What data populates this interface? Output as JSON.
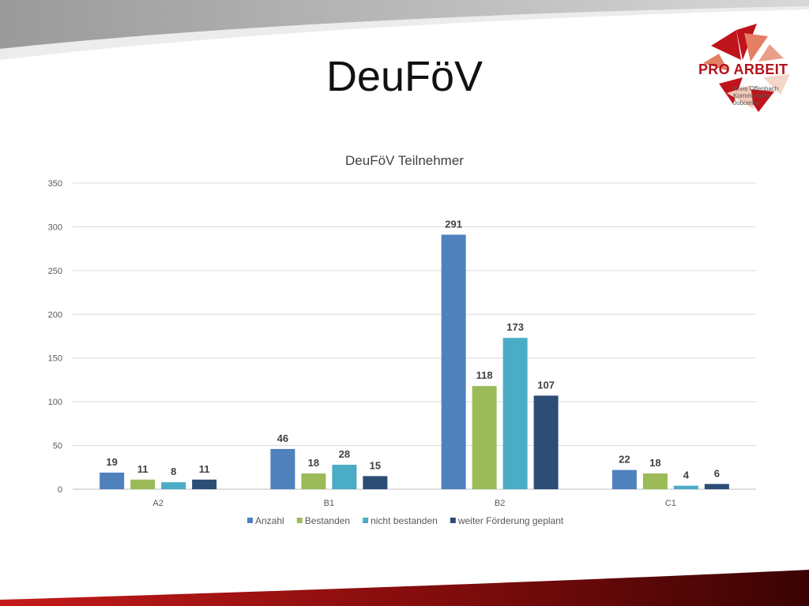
{
  "slide": {
    "title": "DeuFöV",
    "logo": {
      "name": "PRO ARBEIT",
      "line1": "Kreis Offenbach",
      "line2": "Kommunales Jobcenter"
    }
  },
  "colors": {
    "Anzahl": "#4f81bd",
    "Bestanden": "#9bbb59",
    "nicht bestanden": "#4bacc6",
    "weiter Förderung geplant": "#2c4d75",
    "brand": "#b5121b"
  },
  "chart_data": {
    "type": "bar",
    "title": "DeuFöV Teilnehmer",
    "xlabel": "",
    "ylabel": "",
    "categories": [
      "A2",
      "B1",
      "B2",
      "C1"
    ],
    "series": [
      {
        "name": "Anzahl",
        "values": [
          19,
          46,
          291,
          22
        ]
      },
      {
        "name": "Bestanden",
        "values": [
          11,
          18,
          118,
          18
        ]
      },
      {
        "name": "nicht bestanden",
        "values": [
          8,
          28,
          173,
          4
        ]
      },
      {
        "name": "weiter Förderung geplant",
        "values": [
          11,
          15,
          107,
          6
        ]
      }
    ],
    "ylim": [
      0,
      350
    ],
    "yticks": [
      0,
      50,
      100,
      150,
      200,
      250,
      300,
      350
    ],
    "grid": true,
    "legend": "bottom",
    "data_labels": true
  }
}
